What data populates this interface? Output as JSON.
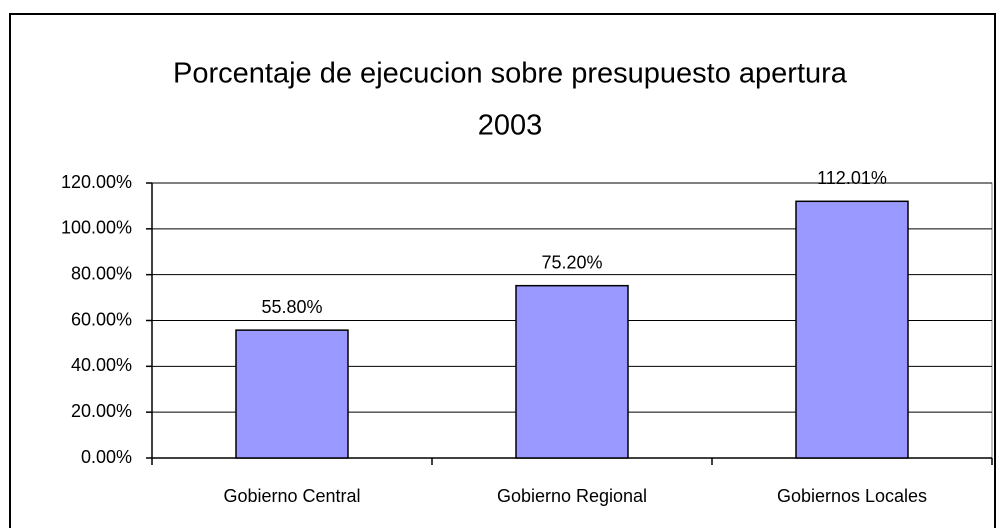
{
  "chart_data": {
    "type": "bar",
    "title": [
      "Porcentaje de ejecucion sobre presupuesto apertura",
      "2003"
    ],
    "categories": [
      "Gobierno Central",
      "Gobierno Regional",
      "Gobiernos Locales"
    ],
    "values": [
      55.8,
      75.2,
      112.01
    ],
    "value_labels": [
      "55.80%",
      "75.20%",
      "112.01%"
    ],
    "color": "#9999ff",
    "ylim": [
      0,
      120
    ],
    "yticks": [
      {
        "value": 0,
        "label": "0.00%"
      },
      {
        "value": 20,
        "label": "20.00%"
      },
      {
        "value": 40,
        "label": "40.00%"
      },
      {
        "value": 60,
        "label": "60.00%"
      },
      {
        "value": 80,
        "label": "80.00%"
      },
      {
        "value": 100,
        "label": "100.00%"
      },
      {
        "value": 120,
        "label": "120.00%"
      }
    ],
    "grid": true
  }
}
